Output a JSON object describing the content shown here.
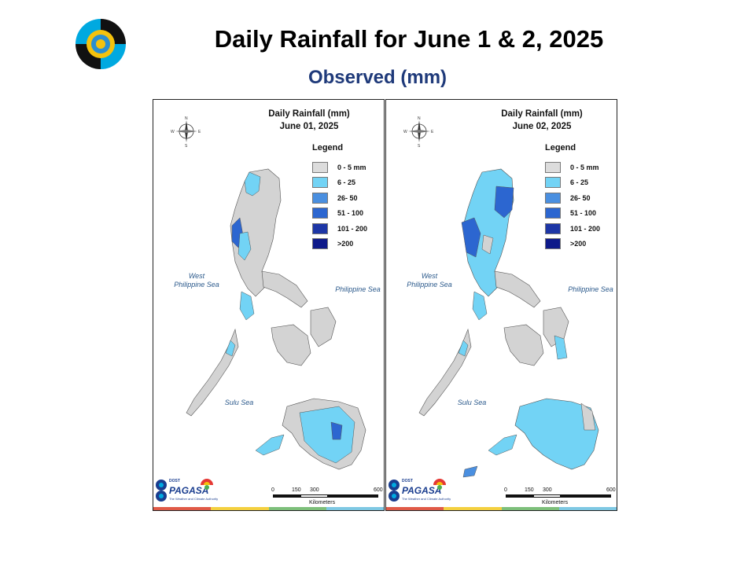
{
  "header": {
    "title": "Daily Rainfall for June 1 & 2, 2025",
    "subtitle": "Observed (mm)"
  },
  "legend": {
    "title": "Legend",
    "items": [
      {
        "label": "0 - 5 mm",
        "color": "#dcdcdc"
      },
      {
        "label": "6 - 25",
        "color": "#72d3f5"
      },
      {
        "label": "26- 50",
        "color": "#4a8fe0"
      },
      {
        "label": "51 - 100",
        "color": "#2c66d0"
      },
      {
        "label": "101 - 200",
        "color": "#1d36a6"
      },
      {
        "label": ">200",
        "color": "#0e1a8a"
      }
    ]
  },
  "panels": [
    {
      "title_line1": "Daily Rainfall (mm)",
      "title_line2": "June 01, 2025"
    },
    {
      "title_line1": "Daily Rainfall (mm)",
      "title_line2": "June 02, 2025"
    }
  ],
  "seas": {
    "west": "West\nPhilippine Sea",
    "east": "Philippine Sea",
    "sulu": "Sulu Sea"
  },
  "compass": {
    "n": "N",
    "s": "S",
    "e": "E",
    "w": "W"
  },
  "scale": {
    "ticks": [
      "0",
      "150",
      "300",
      "600"
    ],
    "unit": "Kilometers"
  },
  "branding": {
    "dost": "DOST",
    "name": "PAGASA",
    "tagline": "The Weather and Climate Authority"
  },
  "colors": {
    "land_gray": "#d3d3d3",
    "light_blue": "#72d3f5",
    "mid_blue": "#4a8fe0",
    "dark_blue": "#2c66d0"
  }
}
